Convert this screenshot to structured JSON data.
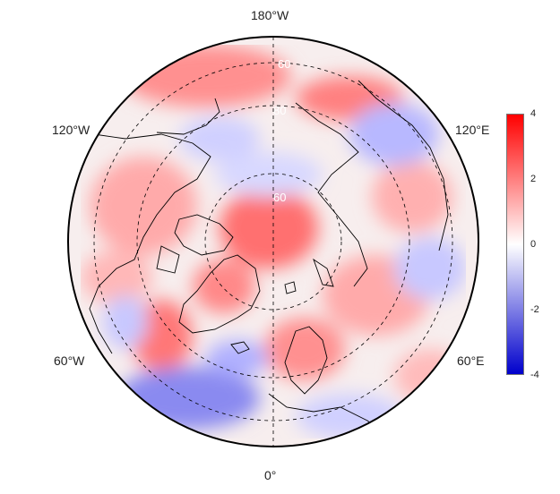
{
  "map": {
    "projection": "north-polar-stereographic",
    "lon_labels": {
      "top": "180°W",
      "bottom": "0°",
      "upper_left": "120°W",
      "upper_right": "120°E",
      "lower_left": "60°W",
      "lower_right": "60°E"
    },
    "lat_labels": [
      "60",
      "80",
      "60"
    ],
    "graticule_style": "dashed",
    "colors": {
      "positive": "#ff0000",
      "neutral": "#ffffff",
      "negative": "#0000cc",
      "coastline": "#000000"
    }
  },
  "colorbar": {
    "ticks": [
      "4",
      "2",
      "0",
      "-2",
      "-4"
    ],
    "min": -4,
    "max": 4
  }
}
